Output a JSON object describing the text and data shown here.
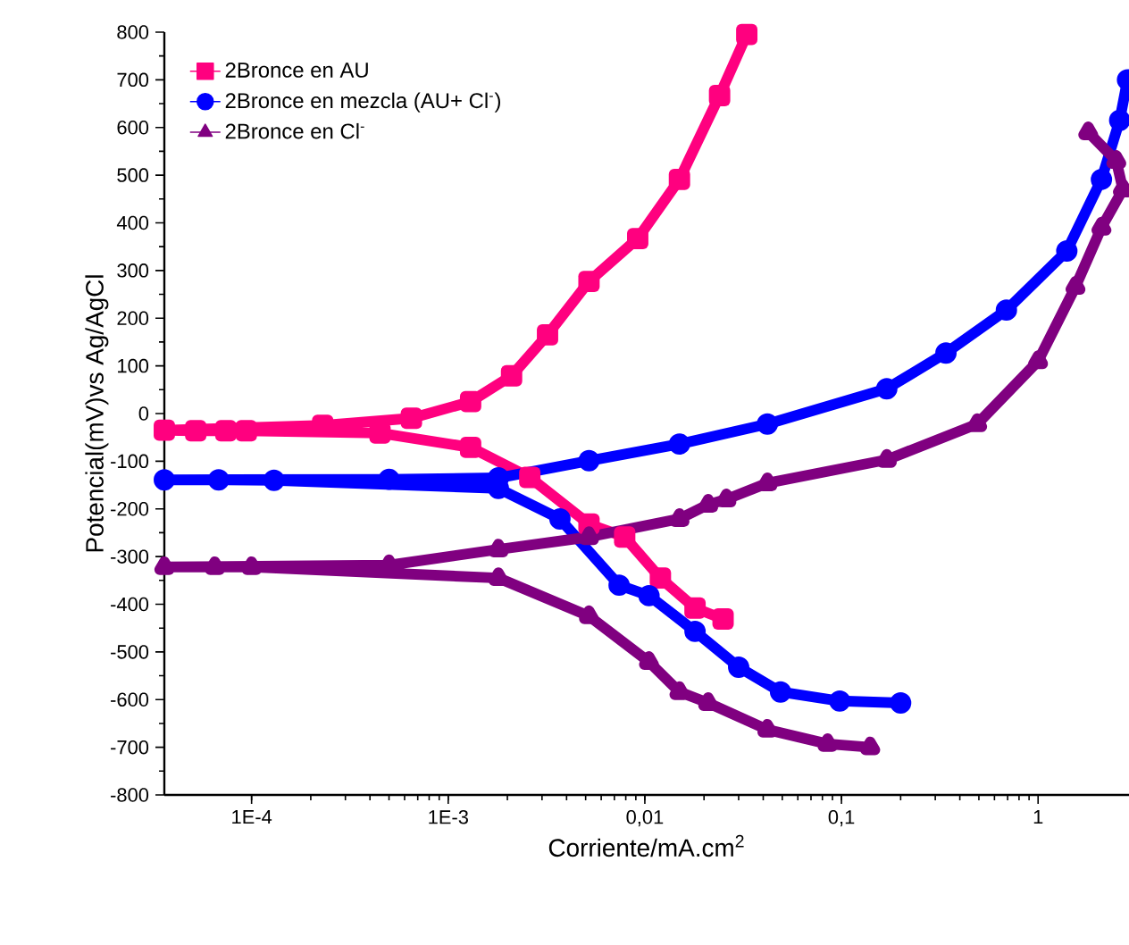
{
  "chart_data": {
    "type": "line",
    "xlabel": "Corriente/mA.cm$^{2}$",
    "ylabel": "Potencial(mV)vs Ag/AgCl",
    "log": "x",
    "legend": "top left",
    "line_style": "solid",
    "xlim": [
      3.6e-05,
      2.9
    ],
    "ylim": [
      -800,
      800
    ],
    "xticks": [
      {
        "value": 0.0001,
        "label": "1E-4"
      },
      {
        "value": 0.001,
        "label": "1E-3"
      },
      {
        "value": 0.01,
        "label": "0,01"
      },
      {
        "value": 0.1,
        "label": "0,1"
      },
      {
        "value": 1,
        "label": "1"
      }
    ],
    "yticks": [
      -800,
      -700,
      -600,
      -500,
      -400,
      -300,
      -200,
      -100,
      0,
      100,
      200,
      300,
      400,
      500,
      600,
      700,
      800
    ],
    "series": [
      {
        "name": "2Bronce en AU",
        "color": "#ff007f",
        "marker": "square",
        "x": [
          0.025,
          0.018,
          0.012,
          0.0079,
          0.0052,
          0.0026,
          0.0013,
          0.00045,
          9.4e-05,
          7.4e-05,
          5.2e-05,
          3.6e-05,
          0.00023,
          0.00065,
          0.0013,
          0.0021,
          0.0032,
          0.0052,
          0.0092,
          0.015,
          0.024,
          0.033
        ],
        "values": [
          -431,
          -408,
          -345,
          -259,
          -232,
          -134,
          -71,
          -41,
          -36,
          -36,
          -36,
          -35,
          -25,
          -10,
          25,
          79,
          165,
          277,
          367,
          491,
          667,
          795
        ]
      },
      {
        "name": "2Bronce en mezcla (AU+ Cl$^{-}$)",
        "color": "#0000ff",
        "marker": "circle",
        "x": [
          0.2,
          0.098,
          0.049,
          0.03,
          0.018,
          0.0105,
          0.0074,
          0.0037,
          0.0018,
          0.0005,
          0.00013,
          6.8e-05,
          3.6e-05,
          0.0005,
          0.0018,
          0.0052,
          0.015,
          0.042,
          0.17,
          0.34,
          0.69,
          1.4,
          2.1,
          2.6,
          2.85
        ],
        "values": [
          -607,
          -603,
          -584,
          -532,
          -457,
          -382,
          -360,
          -221,
          -157,
          null,
          -140,
          -139,
          -139,
          -138,
          -135,
          -99,
          -64,
          -22,
          52,
          127,
          217,
          341,
          491,
          615,
          700
        ]
      },
      {
        "name": "2Bronce en Cl$^{-}$",
        "color": "#800080",
        "marker": "triangle",
        "x": [
          0.14,
          0.085,
          0.042,
          0.021,
          0.015,
          0.0105,
          0.0052,
          0.0018,
          0.0005,
          0.0001,
          6.5e-05,
          3.6e-05,
          0.0005,
          0.0018,
          0.0052,
          0.015,
          0.021,
          0.026,
          0.042,
          0.17,
          0.49,
          1.0,
          1.55,
          2.1,
          2.7,
          2.5,
          1.8
        ],
        "values": [
          -700,
          -693,
          -663,
          -607,
          -584,
          -521,
          -425,
          -345,
          null,
          -322,
          -322,
          -322,
          -318,
          -285,
          -259,
          -221,
          -191,
          -180,
          -146,
          -97,
          -22,
          110,
          266,
          390,
          470,
          530,
          590
        ]
      }
    ]
  }
}
